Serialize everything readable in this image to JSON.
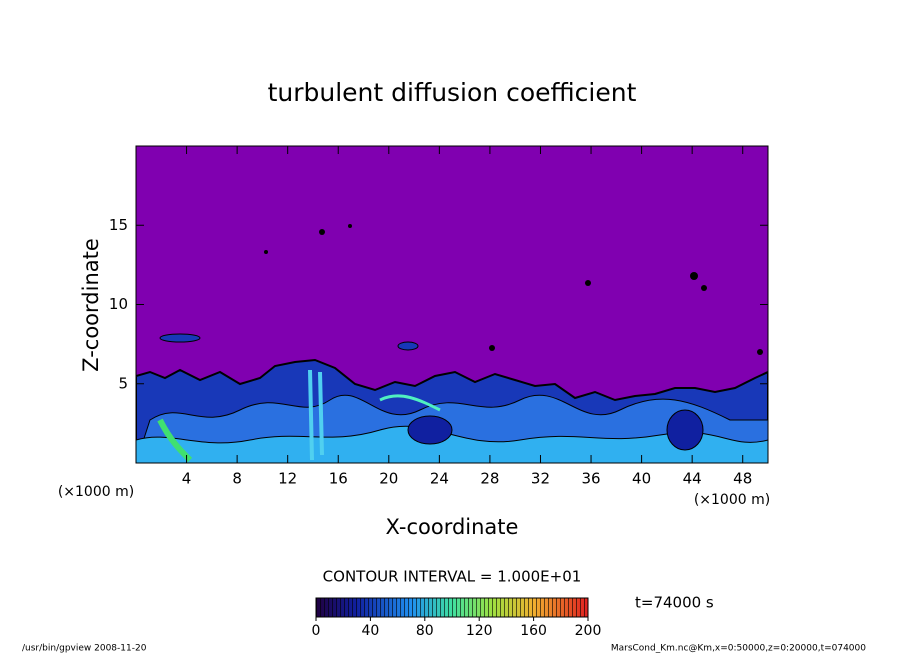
{
  "chart_data": {
    "type": "contour",
    "title": "turbulent diffusion coefficient",
    "x_label": "X-coordinate",
    "y_label": "Z-coordinate",
    "x_unit": "(×1000 m)",
    "y_unit": "(×1000 m)",
    "xlim": [
      0,
      50
    ],
    "ylim": [
      0,
      20
    ],
    "xticks": [
      4,
      8,
      12,
      16,
      20,
      24,
      28,
      32,
      36,
      40,
      44,
      48
    ],
    "yticks": [
      5,
      10,
      15
    ],
    "background_color": "#8000b0",
    "contour_interval_label": "CONTOUR INTERVAL = 1.000E+01",
    "time_label": "t=74000 s",
    "colorbar": {
      "lim": [
        0,
        200
      ],
      "ticks": [
        0,
        40,
        80,
        120,
        160,
        200
      ]
    },
    "footer_left": "/usr/bin/gpview   2008-11-20",
    "footer_right": "MarsCond_Km.nc@Km,x=0:50000,z=0:20000,t=074000"
  }
}
